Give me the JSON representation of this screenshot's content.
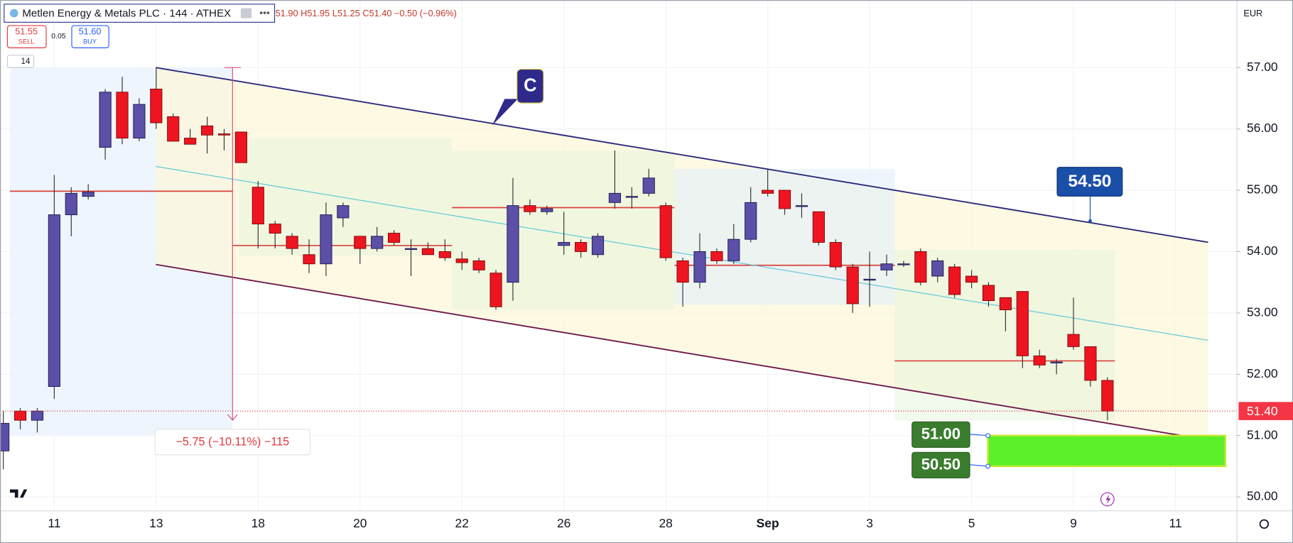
{
  "chart_data": {
    "type": "candlestick",
    "title": "Metlen Energy & Metals PLC · 144 · ATHEX",
    "ohlc_text": "51.90 H51.95 L51.25 C51.40 −0.50 (−0.96%)",
    "currency": "EUR",
    "categories": [
      null,
      null,
      null,
      "11",
      null,
      null,
      null,
      null,
      null,
      "13",
      null,
      null,
      null,
      null,
      null,
      "18",
      null,
      null,
      null,
      null,
      null,
      "20",
      null,
      null,
      null,
      null,
      null,
      "22",
      null,
      null,
      null,
      null,
      null,
      "26",
      null,
      null,
      null,
      null,
      null,
      "28",
      null,
      null,
      null,
      null,
      null,
      "Sep",
      null,
      null,
      null,
      null,
      null,
      "3",
      null,
      null,
      null,
      null,
      null,
      "5",
      null,
      null,
      null,
      null,
      null,
      "9",
      null,
      null,
      null,
      null,
      null,
      "11",
      null,
      null
    ],
    "open": [
      50.75,
      51.4,
      51.25,
      51.8,
      54.6,
      54.9,
      55.7,
      56.6,
      55.85,
      56.65,
      56.2,
      55.85,
      56.05,
      55.92,
      55.95,
      55.05,
      54.45,
      54.25,
      53.95,
      53.8,
      54.55,
      54.25,
      54.05,
      54.3,
      54.05,
      54.05,
      54.0,
      53.88,
      53.85,
      53.65,
      53.5,
      54.75,
      54.65,
      54.1,
      54.15,
      53.95,
      54.8,
      54.9,
      54.95,
      54.75,
      53.85,
      53.5,
      54.0,
      53.85,
      54.2,
      55.0,
      55.0,
      54.75,
      54.65,
      54.15,
      53.75,
      53.55,
      53.7,
      53.8,
      54.0,
      53.6,
      53.75,
      53.6,
      53.45,
      53.25,
      53.35,
      52.3,
      52.2,
      52.65,
      52.45,
      51.9,
      null,
      null,
      null,
      null,
      null,
      null
    ],
    "high": [
      51.4,
      51.45,
      51.45,
      55.25,
      55.05,
      55.1,
      56.65,
      56.85,
      56.5,
      57.0,
      56.25,
      56.0,
      56.2,
      56.0,
      55.95,
      55.15,
      54.5,
      54.3,
      54.2,
      54.8,
      54.8,
      54.25,
      54.4,
      54.35,
      54.2,
      54.15,
      54.2,
      54.0,
      53.9,
      53.7,
      55.2,
      54.85,
      54.75,
      54.65,
      54.2,
      54.3,
      55.65,
      55.05,
      55.35,
      54.8,
      53.9,
      54.3,
      54.05,
      54.45,
      55.05,
      55.35,
      55.0,
      54.95,
      54.65,
      54.2,
      53.8,
      54.0,
      53.95,
      53.85,
      54.05,
      53.9,
      53.8,
      53.7,
      53.5,
      53.25,
      53.35,
      52.4,
      52.25,
      53.25,
      52.45,
      51.95,
      null,
      null,
      null,
      null,
      null,
      null
    ],
    "low": [
      50.45,
      51.1,
      51.05,
      51.6,
      54.25,
      54.85,
      55.5,
      55.75,
      55.8,
      56.0,
      55.8,
      55.75,
      55.6,
      55.65,
      55.45,
      54.05,
      54.05,
      53.95,
      53.65,
      53.6,
      54.4,
      53.8,
      54.0,
      54.1,
      53.6,
      53.95,
      53.85,
      53.7,
      53.65,
      53.05,
      53.2,
      54.6,
      54.6,
      53.95,
      53.9,
      53.9,
      54.7,
      54.7,
      54.9,
      53.85,
      53.1,
      53.4,
      53.8,
      53.8,
      54.15,
      54.9,
      54.6,
      54.55,
      54.1,
      53.7,
      53.0,
      53.1,
      53.6,
      53.75,
      53.45,
      53.5,
      53.25,
      53.4,
      53.1,
      52.7,
      52.1,
      52.1,
      52.0,
      52.4,
      51.8,
      51.25,
      null,
      null,
      null,
      null,
      null,
      null
    ],
    "close": [
      51.2,
      51.25,
      51.4,
      54.6,
      54.95,
      54.97,
      56.6,
      55.85,
      56.4,
      56.1,
      55.8,
      55.75,
      55.9,
      55.9,
      55.45,
      54.45,
      54.3,
      54.05,
      53.8,
      54.6,
      54.75,
      54.05,
      54.25,
      54.15,
      54.05,
      53.95,
      53.9,
      53.82,
      53.7,
      53.1,
      54.75,
      54.65,
      54.7,
      54.15,
      54.0,
      54.25,
      54.95,
      54.9,
      55.2,
      53.9,
      53.5,
      54.0,
      53.85,
      54.2,
      54.8,
      54.95,
      54.7,
      54.75,
      54.15,
      53.75,
      53.15,
      53.55,
      53.8,
      53.8,
      53.5,
      53.85,
      53.3,
      53.5,
      53.2,
      53.05,
      52.3,
      52.15,
      52.2,
      52.45,
      51.9,
      51.4,
      null,
      null,
      null,
      null,
      null,
      null
    ],
    "up_color": "#5b4fa8",
    "down_color": "#ee1520",
    "ylim": [
      49.8,
      57.9
    ],
    "yticks": [
      {
        "value": 50,
        "label": "50.00"
      },
      {
        "value": 51,
        "label": "51.00"
      },
      {
        "value": 52,
        "label": "52.00"
      },
      {
        "value": 53,
        "label": "53.00"
      },
      {
        "value": 54,
        "label": "54.00"
      },
      {
        "value": 55,
        "label": "55.00"
      },
      {
        "value": 56,
        "label": "56.00"
      },
      {
        "value": 57,
        "label": "57.00"
      }
    ],
    "grid": true,
    "annotations": {
      "callout": "C",
      "measure": "−5.75 (−10.11%) −115",
      "target": {
        "value": 54.5,
        "label": "54.50"
      },
      "zone_top": {
        "value": 51.0,
        "label": "51.00"
      },
      "zone_bottom": {
        "value": 50.5,
        "label": "50.50"
      },
      "last_price": {
        "value": 51.4,
        "label": "51.40"
      }
    }
  },
  "toolbar": {
    "sell_price": "51.55",
    "sell_label": "SELL",
    "spread": "0.05",
    "buy_price": "51.60",
    "buy_label": "BUY",
    "badge": "14"
  }
}
